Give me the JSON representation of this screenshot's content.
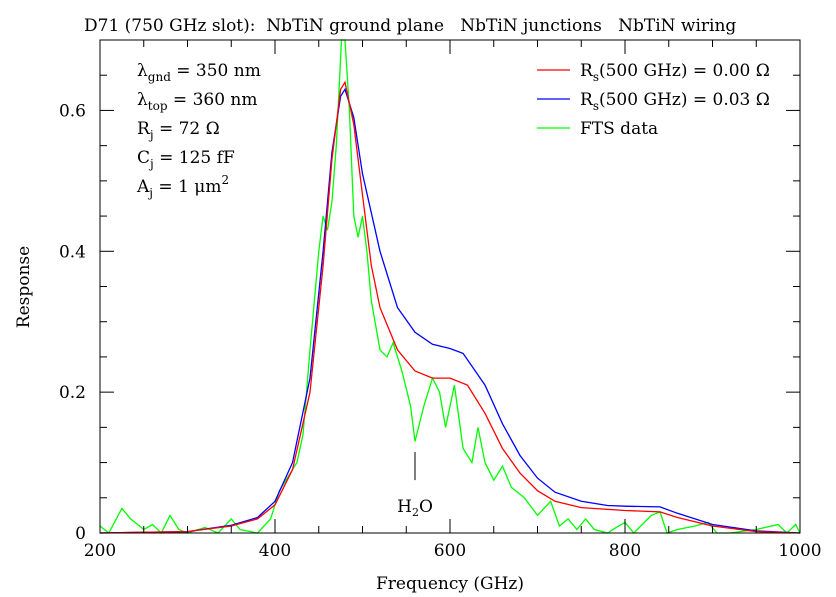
{
  "chart_data": {
    "type": "line",
    "title": "D71 (750 GHz slot):  NbTiN ground plane   NbTiN junctions   NbTiN wiring",
    "xlabel": "Frequency (GHz)",
    "ylabel": "Response",
    "xlim": [
      200,
      1000
    ],
    "ylim": [
      0,
      0.7
    ],
    "xticks": [
      200,
      400,
      600,
      800,
      1000
    ],
    "xtick_labels": [
      "200",
      "400",
      "600",
      "800",
      "1000"
    ],
    "yticks": [
      0,
      0.2,
      0.4,
      0.6
    ],
    "ytick_labels": [
      "0",
      "0.2",
      "0.4",
      "0.6"
    ],
    "grid": false,
    "legend_placement": "top-right",
    "parameters": [
      {
        "sym": "λ",
        "sub": "gnd",
        "text": " = 350 nm"
      },
      {
        "sym": "λ",
        "sub": "top",
        "text": " = 360 nm"
      },
      {
        "sym": "R",
        "sub": "j",
        "text": " = 72 Ω"
      },
      {
        "sym": "C",
        "sub": "j",
        "text": " = 125 fF"
      },
      {
        "sym": "A",
        "sub": "j",
        "text": " = 1 μm",
        "sup": "2"
      }
    ],
    "annotation": {
      "label_main": "H",
      "label_sub": "2",
      "label_end": "O",
      "x": 560,
      "y_from": 0.115,
      "y_to": 0.075
    },
    "series": [
      {
        "name": "R_s(500 GHz) = 0.00 Ω",
        "legend_main": "R",
        "legend_sub": "s",
        "legend_rest": "(500 GHz) = 0.00 Ω",
        "color": "#ff0000",
        "x": [
          200,
          300,
          350,
          380,
          400,
          420,
          440,
          455,
          465,
          475,
          480,
          490,
          500,
          510,
          520,
          540,
          560,
          580,
          600,
          620,
          640,
          660,
          680,
          700,
          720,
          750,
          800,
          840,
          860,
          900,
          950,
          1000
        ],
        "y": [
          0,
          0.002,
          0.01,
          0.02,
          0.04,
          0.09,
          0.2,
          0.38,
          0.53,
          0.63,
          0.64,
          0.58,
          0.48,
          0.38,
          0.32,
          0.26,
          0.23,
          0.22,
          0.22,
          0.21,
          0.17,
          0.12,
          0.085,
          0.06,
          0.045,
          0.036,
          0.032,
          0.03,
          0.022,
          0.01,
          0.002,
          0
        ]
      },
      {
        "name": "R_s(500 GHz) = 0.03 Ω",
        "legend_main": "R",
        "legend_sub": "s",
        "legend_rest": "(500 GHz) = 0.03 Ω",
        "color": "#0000ff",
        "x": [
          200,
          300,
          350,
          380,
          400,
          420,
          440,
          455,
          465,
          475,
          480,
          490,
          500,
          520,
          540,
          560,
          580,
          600,
          615,
          640,
          660,
          680,
          700,
          720,
          750,
          780,
          800,
          840,
          860,
          900,
          950,
          1000
        ],
        "y": [
          0,
          0.002,
          0.011,
          0.022,
          0.045,
          0.1,
          0.22,
          0.4,
          0.54,
          0.62,
          0.63,
          0.59,
          0.51,
          0.4,
          0.32,
          0.285,
          0.268,
          0.262,
          0.255,
          0.21,
          0.155,
          0.11,
          0.078,
          0.058,
          0.045,
          0.039,
          0.038,
          0.037,
          0.028,
          0.012,
          0.003,
          0
        ]
      },
      {
        "name": "FTS data",
        "legend_main": "FTS data",
        "legend_sub": "",
        "legend_rest": "",
        "color": "#00ff00",
        "x": [
          200,
          210,
          225,
          235,
          250,
          260,
          270,
          280,
          290,
          300,
          320,
          335,
          350,
          360,
          380,
          395,
          405,
          415,
          425,
          432,
          440,
          450,
          455,
          460,
          465,
          470,
          476,
          480,
          485,
          490,
          495,
          500,
          505,
          510,
          520,
          528,
          535,
          545,
          555,
          560,
          570,
          580,
          588,
          595,
          605,
          615,
          625,
          632,
          640,
          650,
          660,
          670,
          685,
          700,
          715,
          725,
          735,
          745,
          755,
          765,
          780,
          790,
          800,
          810,
          830,
          840,
          848,
          860,
          880,
          895,
          905,
          920,
          950,
          975,
          985,
          995,
          1000
        ],
        "y": [
          0.01,
          0,
          0.035,
          0.02,
          0.005,
          0.012,
          0,
          0.025,
          0.005,
          0,
          0.008,
          0,
          0.02,
          0.005,
          0,
          0.02,
          0.06,
          0.08,
          0.1,
          0.14,
          0.26,
          0.4,
          0.45,
          0.43,
          0.47,
          0.55,
          0.7,
          0.7,
          0.6,
          0.45,
          0.42,
          0.45,
          0.4,
          0.33,
          0.26,
          0.25,
          0.27,
          0.23,
          0.18,
          0.13,
          0.18,
          0.22,
          0.2,
          0.15,
          0.21,
          0.12,
          0.1,
          0.15,
          0.1,
          0.075,
          0.095,
          0.065,
          0.05,
          0.025,
          0.045,
          0.01,
          0.02,
          0.005,
          0.02,
          0.005,
          0,
          0.008,
          0.015,
          0,
          0.025,
          0.03,
          0,
          0.005,
          0.01,
          0.015,
          0,
          0,
          0.005,
          0.012,
          0,
          0.012,
          0
        ]
      }
    ]
  }
}
